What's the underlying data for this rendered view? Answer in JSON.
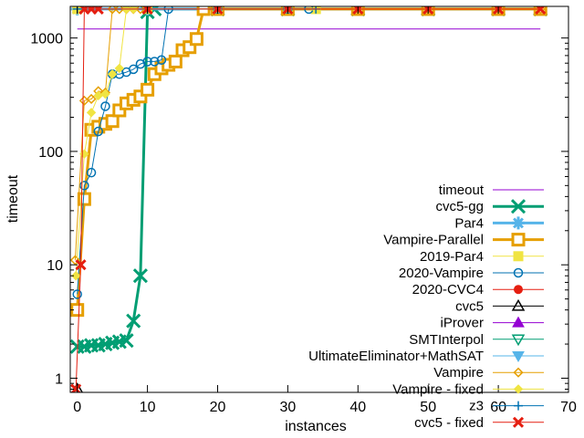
{
  "chart_data": {
    "type": "line",
    "xlabel": "instances",
    "ylabel": "timeout",
    "xlim": [
      -1,
      70
    ],
    "ylim": [
      0.75,
      1900
    ],
    "yscale": "log",
    "grid": false,
    "legend_position": "bottom-right",
    "x_ticks": [
      0,
      10,
      20,
      30,
      40,
      50,
      60,
      70
    ],
    "y_ticks": [
      {
        "value": 1,
        "label": "1"
      },
      {
        "value": 10,
        "label": "10"
      },
      {
        "value": 100,
        "label": "100"
      },
      {
        "value": 1000,
        "label": "1000"
      }
    ],
    "series": [
      {
        "name": "timeout",
        "color": "#9400d3",
        "marker": "none",
        "width": 1,
        "x": [
          0,
          66
        ],
        "y": [
          1200,
          1200
        ]
      },
      {
        "name": "cvc5-gg",
        "color": "#009e73",
        "marker": "x",
        "width": 3,
        "msize": 7,
        "x": [
          0,
          1,
          2,
          3,
          4,
          5,
          6,
          7,
          8,
          9,
          10,
          11,
          20,
          30,
          40,
          50,
          60,
          66
        ],
        "y": [
          1.9,
          1.9,
          1.95,
          1.95,
          2.0,
          2.05,
          2.1,
          2.15,
          3.2,
          8.0,
          1700,
          1800,
          1800,
          1800,
          1800,
          1800,
          1800,
          1800
        ]
      },
      {
        "name": "Par4",
        "color": "#56b4e9",
        "marker": "asterisk",
        "width": 3,
        "msize": 7,
        "x": [
          0,
          10,
          20,
          30,
          40,
          50,
          60,
          66
        ],
        "y": [
          1800,
          1800,
          1800,
          1800,
          1800,
          1800,
          1800,
          1800
        ]
      },
      {
        "name": "Vampire-Parallel",
        "color": "#e69f00",
        "marker": "square",
        "width": 3,
        "msize": 6,
        "x": [
          0,
          1,
          2,
          3,
          4,
          5,
          6,
          7,
          8,
          9,
          10,
          11,
          12,
          13,
          14,
          15,
          16,
          17,
          18,
          20,
          30,
          40,
          50,
          60,
          66
        ],
        "y": [
          4.0,
          38,
          155,
          165,
          175,
          185,
          230,
          265,
          285,
          305,
          350,
          480,
          540,
          580,
          620,
          780,
          830,
          980,
          1800,
          1800,
          1800,
          1800,
          1800,
          1800,
          1800
        ]
      },
      {
        "name": "2019-Par4",
        "color": "#f0e442",
        "marker": "filled-square",
        "width": 1,
        "msize": 5,
        "x": [
          0,
          10,
          20,
          30,
          34
        ],
        "y": [
          1800,
          1800,
          1800,
          1800,
          1800
        ]
      },
      {
        "name": "2020-Vampire",
        "color": "#0072b2",
        "marker": "circle",
        "width": 1,
        "msize": 4.5,
        "x": [
          0,
          1,
          2,
          3,
          4,
          5,
          6,
          7,
          8,
          9,
          10,
          11,
          12,
          13,
          20,
          30,
          33
        ],
        "y": [
          5.5,
          50,
          65,
          150,
          250,
          480,
          480,
          500,
          530,
          590,
          620,
          620,
          640,
          1800,
          1800,
          1800,
          1800
        ]
      },
      {
        "name": "2020-CVC4",
        "color": "#e51e10",
        "marker": "filled-circle",
        "width": 1,
        "msize": 4.5,
        "x": [],
        "y": []
      },
      {
        "name": "cvc5",
        "color": "#000000",
        "marker": "triangle",
        "width": 1,
        "msize": 6,
        "x": [
          0
        ],
        "y": [
          0.8
        ]
      },
      {
        "name": "iProver",
        "color": "#9400d3",
        "marker": "filled-triangle",
        "width": 1,
        "msize": 6,
        "x": [],
        "y": []
      },
      {
        "name": "SMTInterpol",
        "color": "#009e73",
        "marker": "triangle-down",
        "width": 1,
        "msize": 6,
        "x": [],
        "y": []
      },
      {
        "name": "UltimateEliminator+MathSAT",
        "color": "#56b4e9",
        "marker": "filled-triangle-down",
        "width": 1,
        "msize": 6,
        "x": [],
        "y": []
      },
      {
        "name": "Vampire",
        "color": "#e69f00",
        "marker": "diamond",
        "width": 1,
        "msize": 4.5,
        "x": [
          -0.3,
          1,
          2,
          3,
          4,
          5,
          6,
          7,
          8,
          9,
          10,
          20,
          30,
          40,
          50,
          60,
          66
        ],
        "y": [
          11,
          280,
          290,
          340,
          330,
          1800,
          1800,
          1800,
          1800,
          1800,
          1800,
          1800,
          1800,
          1800,
          1800,
          1800,
          1800
        ]
      },
      {
        "name": "Vampire - fixed",
        "color": "#f0e442",
        "marker": "filled-diamond",
        "width": 1,
        "msize": 4.5,
        "x": [
          -0.2,
          1,
          2,
          3,
          4,
          5,
          6,
          7,
          8,
          10,
          20,
          30,
          34
        ],
        "y": [
          8,
          95,
          220,
          310,
          320,
          480,
          540,
          1800,
          1800,
          1800,
          1800,
          1800,
          1800
        ]
      },
      {
        "name": "z3",
        "color": "#0072b2",
        "marker": "plus",
        "width": 1,
        "msize": 5,
        "x": [
          0,
          10,
          20,
          30,
          34
        ],
        "y": [
          1800,
          1800,
          1800,
          1800,
          1800
        ]
      },
      {
        "name": "cvc5 - fixed",
        "color": "#e51e10",
        "marker": "x",
        "width": 1,
        "msize": 5,
        "x": [
          -0.2,
          0.5,
          1,
          2,
          3,
          10,
          20,
          30,
          40,
          50,
          60,
          66
        ],
        "y": [
          0.8,
          10,
          1800,
          1800,
          1800,
          1800,
          1800,
          1800,
          1800,
          1800,
          1800,
          1800
        ]
      }
    ]
  }
}
